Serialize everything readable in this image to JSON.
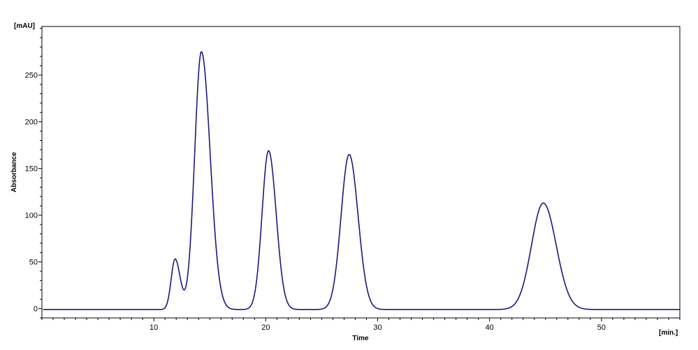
{
  "chart_data": {
    "type": "line",
    "xlabel": "Time",
    "ylabel": "Absorbance",
    "x_unit": "[min.]",
    "y_unit": "[mAU]",
    "xlim": [
      0,
      57
    ],
    "ylim": [
      -10,
      302
    ],
    "x_ticks": [
      10,
      20,
      30,
      40,
      50
    ],
    "y_ticks": [
      0,
      50,
      100,
      150,
      200,
      250
    ],
    "x_minor_step": 1,
    "y_minor_step": 10,
    "grid": false,
    "legend": "none",
    "line_color": "#1a1a7a",
    "baseline": -1,
    "peaks": [
      {
        "rt": 11.9,
        "height": 54,
        "sigma_left": 0.35,
        "sigma_right": 0.45
      },
      {
        "rt": 14.25,
        "height": 276,
        "sigma_left": 0.6,
        "sigma_right": 0.78
      },
      {
        "rt": 20.25,
        "height": 170,
        "sigma_left": 0.58,
        "sigma_right": 0.68
      },
      {
        "rt": 27.45,
        "height": 166,
        "sigma_left": 0.72,
        "sigma_right": 0.8
      },
      {
        "rt": 44.8,
        "height": 114,
        "sigma_left": 1.05,
        "sigma_right": 1.15
      }
    ],
    "series": [
      {
        "x": [
          0,
          10,
          11.0,
          11.5,
          11.9,
          12.3,
          12.8,
          13.5,
          14.25,
          15.0,
          16.0,
          17.0,
          18.5,
          19.5,
          20.25,
          21.0,
          22.0,
          23.0,
          25.0,
          26.5,
          27.45,
          28.3,
          29.5,
          31.0,
          40.0,
          42.5,
          43.5,
          44.8,
          46.0,
          47.5,
          50.0,
          57.0
        ],
        "y": [
          -1,
          -1,
          1,
          30,
          54,
          40,
          40,
          160,
          276,
          160,
          20,
          6,
          3,
          110,
          170,
          90,
          8,
          1,
          2,
          110,
          166,
          110,
          12,
          -0.5,
          -0.5,
          15,
          55,
          114,
          65,
          10,
          -1,
          -1
        ]
      }
    ]
  }
}
